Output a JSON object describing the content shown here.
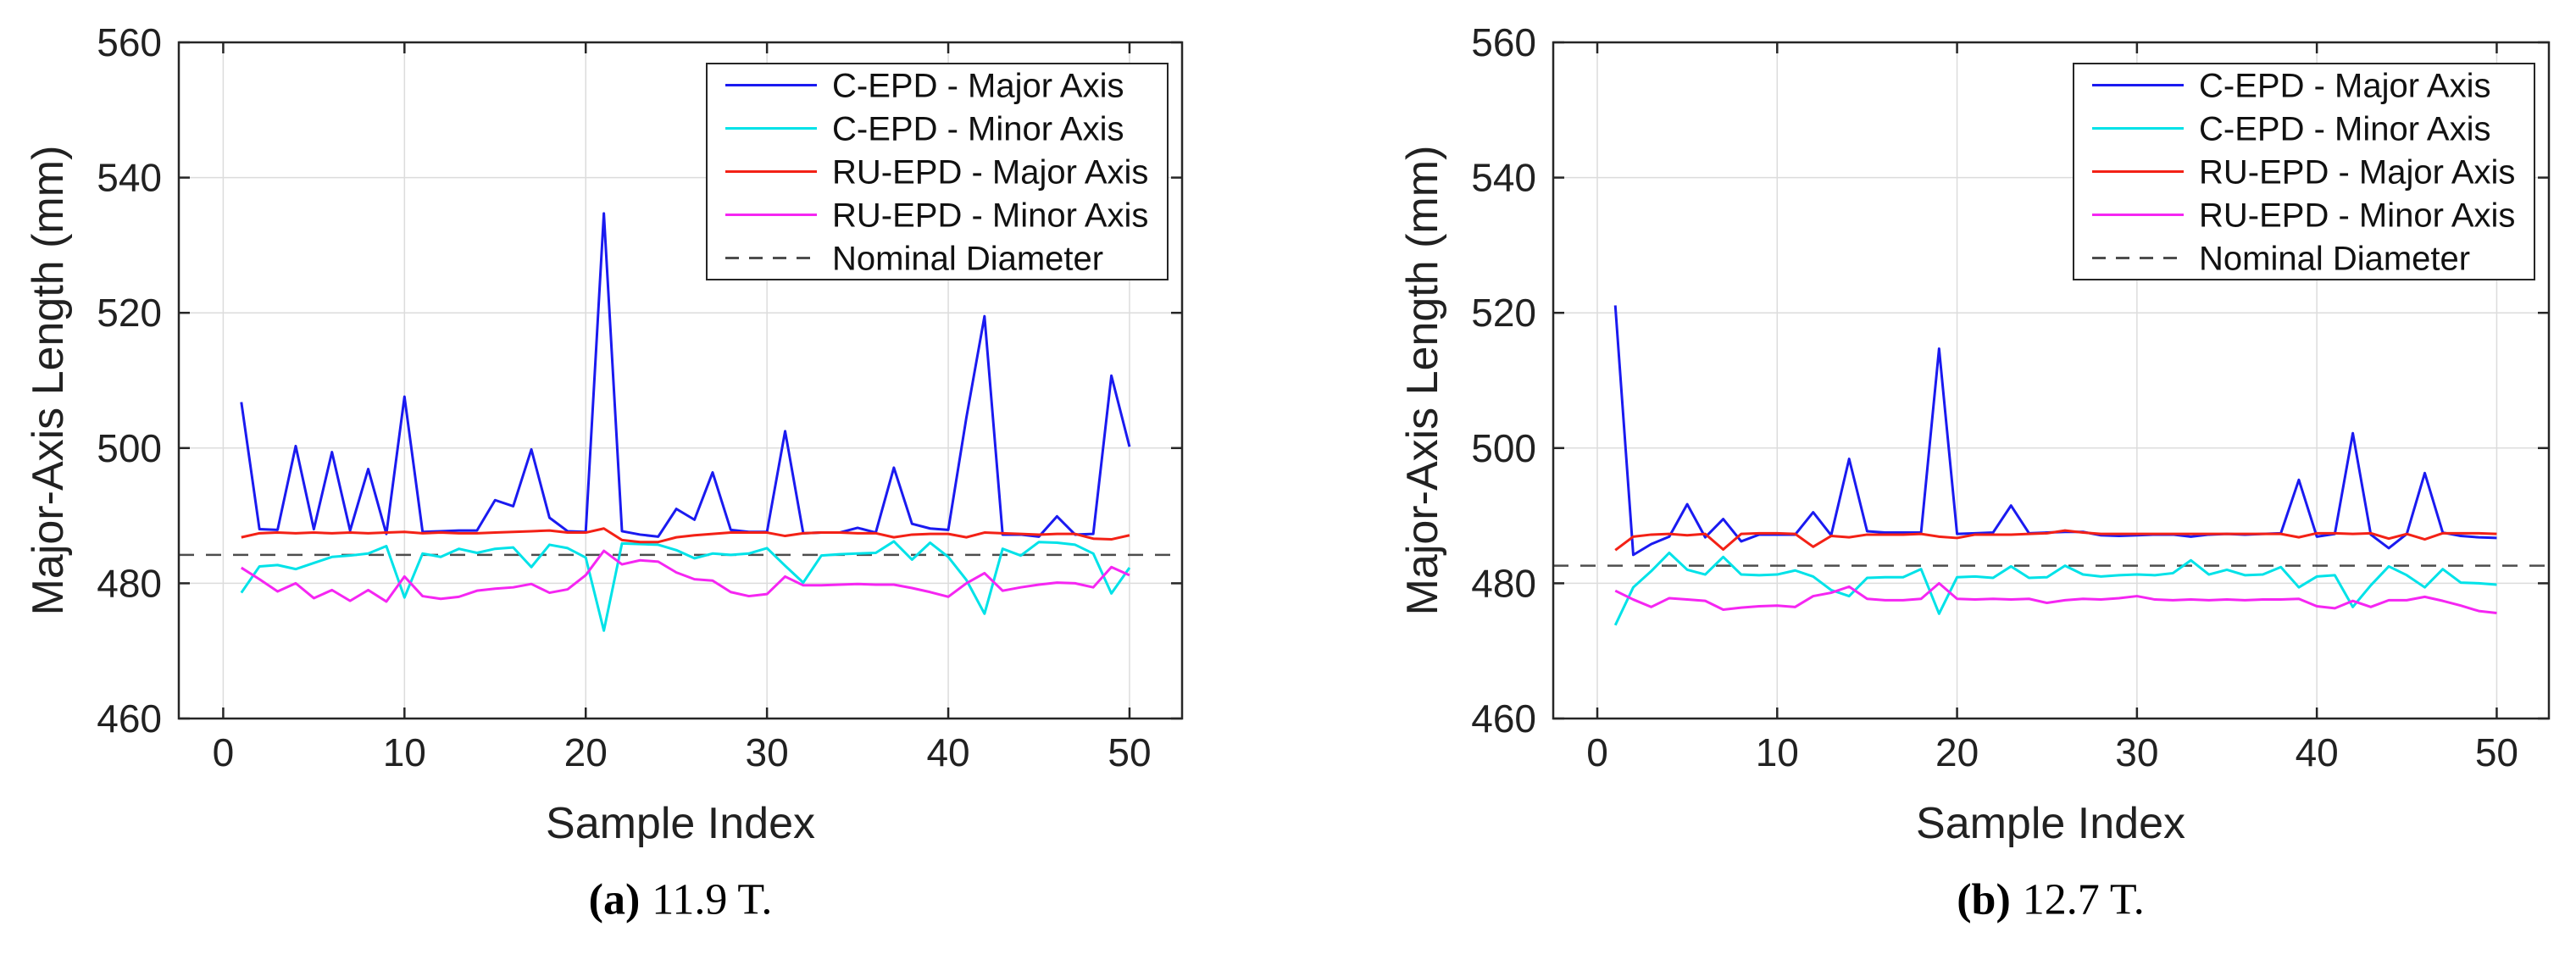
{
  "figure": {
    "background": "#ffffff",
    "text_color": "#212121",
    "grid_color": "#dcdcdc",
    "frame_color": "#262626",
    "panels": [
      {
        "id": "a",
        "ylabel": "Major-Axis Length (mm)",
        "xlabel": "Sample Index",
        "caption_marker": "(a)",
        "caption_text": "11.9 T."
      },
      {
        "id": "b",
        "ylabel": "Major-Axis Length (mm)",
        "xlabel": "Sample Index",
        "caption_marker": "(b)",
        "caption_text": "12.7 T."
      }
    ]
  },
  "chart_data": [
    {
      "type": "line",
      "title": "",
      "xlabel": "Sample Index",
      "ylabel": "Major-Axis Length (mm)",
      "xlim": [
        -2.45,
        52.9
      ],
      "ylim": [
        460,
        560
      ],
      "xticks": [
        0,
        10,
        20,
        30,
        40,
        50
      ],
      "yticks": [
        460,
        480,
        500,
        520,
        540,
        560
      ],
      "grid": true,
      "legend_position": "upper right",
      "x": [
        1,
        2,
        3,
        4,
        5,
        6,
        7,
        8,
        9,
        10,
        11,
        12,
        13,
        14,
        15,
        16,
        17,
        18,
        19,
        20,
        21,
        22,
        23,
        24,
        25,
        26,
        27,
        28,
        29,
        30,
        31,
        32,
        33,
        34,
        35,
        36,
        37,
        38,
        39,
        40,
        41,
        42,
        43,
        44,
        45,
        46,
        47,
        48,
        49,
        50
      ],
      "series": [
        {
          "name": "C-EPD - Major Axis",
          "color": "#1a1af0",
          "values": [
            506.8,
            488.0,
            487.9,
            500.3,
            488.0,
            499.4,
            487.8,
            496.9,
            487.3,
            507.6,
            487.6,
            487.7,
            487.8,
            487.8,
            492.3,
            491.4,
            499.8,
            489.7,
            487.7,
            487.6,
            534.7,
            487.7,
            487.2,
            486.9,
            491.0,
            489.4,
            496.4,
            487.9,
            487.6,
            487.6,
            502.5,
            487.4,
            487.5,
            487.5,
            488.2,
            487.5,
            497.1,
            488.8,
            488.1,
            487.9,
            504.5,
            519.5,
            487.2,
            487.2,
            486.9,
            489.9,
            487.2,
            487.3,
            510.7,
            500.2
          ]
        },
        {
          "name": "C-EPD - Minor Axis",
          "color": "#00e2e8",
          "values": [
            478.6,
            482.5,
            482.7,
            482.1,
            483.0,
            483.9,
            484.1,
            484.4,
            485.5,
            477.9,
            484.4,
            483.9,
            485.1,
            484.5,
            485.1,
            485.3,
            482.4,
            485.7,
            485.2,
            483.8,
            473.0,
            485.9,
            485.8,
            485.7,
            484.9,
            483.7,
            484.4,
            484.2,
            484.4,
            485.2,
            482.6,
            480.1,
            484.1,
            484.3,
            484.4,
            484.5,
            486.2,
            483.5,
            486.0,
            483.9,
            480.5,
            475.5,
            485.1,
            484.1,
            486.1,
            486.0,
            485.7,
            484.4,
            478.5,
            482.3
          ]
        },
        {
          "name": "RU-EPD - Major Axis",
          "color": "#f32116",
          "values": [
            486.8,
            487.4,
            487.5,
            487.4,
            487.5,
            487.4,
            487.5,
            487.4,
            487.5,
            487.6,
            487.4,
            487.5,
            487.4,
            487.4,
            487.5,
            487.6,
            487.7,
            487.8,
            487.5,
            487.5,
            488.1,
            486.4,
            486.1,
            486.1,
            486.8,
            487.1,
            487.3,
            487.5,
            487.5,
            487.5,
            487.0,
            487.4,
            487.5,
            487.5,
            487.4,
            487.4,
            486.8,
            487.2,
            487.3,
            487.3,
            486.8,
            487.5,
            487.4,
            487.3,
            487.2,
            487.3,
            487.3,
            486.6,
            486.5,
            487.1
          ]
        },
        {
          "name": "RU-EPD - Minor Axis",
          "color": "#f526f2",
          "values": [
            482.3,
            480.6,
            478.8,
            480.0,
            477.8,
            479.0,
            477.4,
            479.0,
            477.3,
            481.0,
            478.1,
            477.7,
            478.0,
            478.9,
            479.2,
            479.4,
            479.9,
            478.6,
            479.1,
            481.2,
            484.8,
            482.8,
            483.4,
            483.2,
            481.6,
            480.6,
            480.4,
            478.7,
            478.1,
            478.4,
            481.0,
            479.7,
            479.7,
            479.8,
            479.9,
            479.8,
            479.8,
            479.3,
            478.7,
            478.0,
            480.0,
            481.5,
            478.9,
            479.4,
            479.8,
            480.1,
            480.0,
            479.4,
            482.4,
            481.2
          ]
        }
      ],
      "nominal_diameter": {
        "name": "Nominal Diameter",
        "value": 484.2,
        "color": "#4d4d4d",
        "style": "dashed"
      }
    },
    {
      "type": "line",
      "title": "",
      "xlabel": "Sample Index",
      "ylabel": "Major-Axis Length (mm)",
      "xlim": [
        -2.45,
        52.9
      ],
      "ylim": [
        460,
        560
      ],
      "xticks": [
        0,
        10,
        20,
        30,
        40,
        50
      ],
      "yticks": [
        460,
        480,
        500,
        520,
        540,
        560
      ],
      "grid": true,
      "legend_position": "upper right",
      "x": [
        1,
        2,
        3,
        4,
        5,
        6,
        7,
        8,
        9,
        10,
        11,
        12,
        13,
        14,
        15,
        16,
        17,
        18,
        19,
        20,
        21,
        22,
        23,
        24,
        25,
        26,
        27,
        28,
        29,
        30,
        31,
        32,
        33,
        34,
        35,
        36,
        37,
        38,
        39,
        40,
        41,
        42,
        43,
        44,
        45,
        46,
        47,
        48,
        49,
        50
      ],
      "series": [
        {
          "name": "C-EPD - Major Axis",
          "color": "#1a1af0",
          "values": [
            521.1,
            484.2,
            485.8,
            486.9,
            491.7,
            486.8,
            489.5,
            486.2,
            487.2,
            487.2,
            487.2,
            490.5,
            487.1,
            498.4,
            487.7,
            487.5,
            487.5,
            487.5,
            514.7,
            487.3,
            487.4,
            487.5,
            491.5,
            487.4,
            487.5,
            487.6,
            487.6,
            487.1,
            487.0,
            487.1,
            487.2,
            487.2,
            486.9,
            487.2,
            487.3,
            487.2,
            487.3,
            487.4,
            495.3,
            486.9,
            487.3,
            502.2,
            487.2,
            485.2,
            487.3,
            496.3,
            487.5,
            487.0,
            486.8,
            486.7
          ]
        },
        {
          "name": "C-EPD - Minor Axis",
          "color": "#00e2e8",
          "values": [
            473.8,
            479.4,
            481.8,
            484.5,
            482.0,
            481.3,
            483.9,
            481.3,
            481.2,
            481.3,
            481.9,
            481.0,
            479.0,
            478.1,
            480.8,
            480.9,
            480.9,
            482.1,
            475.5,
            480.9,
            481.0,
            480.8,
            482.5,
            480.8,
            480.9,
            482.6,
            481.3,
            481.0,
            481.2,
            481.3,
            481.2,
            481.5,
            483.4,
            481.3,
            482.0,
            481.2,
            481.3,
            482.4,
            479.4,
            481.0,
            481.2,
            476.5,
            479.7,
            482.5,
            481.2,
            479.4,
            482.1,
            480.1,
            480.0,
            479.8
          ]
        },
        {
          "name": "RU-EPD - Major Axis",
          "color": "#f32116",
          "values": [
            484.9,
            486.9,
            487.2,
            487.3,
            487.1,
            487.3,
            485.0,
            487.3,
            487.4,
            487.4,
            487.3,
            485.4,
            487.0,
            486.8,
            487.2,
            487.2,
            487.2,
            487.3,
            486.9,
            486.7,
            487.2,
            487.2,
            487.2,
            487.3,
            487.4,
            487.8,
            487.5,
            487.3,
            487.3,
            487.3,
            487.3,
            487.3,
            487.3,
            487.3,
            487.3,
            487.3,
            487.3,
            487.3,
            486.8,
            487.4,
            487.4,
            487.3,
            487.4,
            486.6,
            487.3,
            486.5,
            487.4,
            487.4,
            487.4,
            487.3
          ]
        },
        {
          "name": "RU-EPD - Minor Axis",
          "color": "#f526f2",
          "values": [
            478.9,
            477.6,
            476.5,
            477.8,
            477.6,
            477.4,
            476.1,
            476.4,
            476.6,
            476.7,
            476.5,
            478.1,
            478.6,
            479.5,
            477.7,
            477.5,
            477.5,
            477.7,
            480.0,
            477.7,
            477.6,
            477.7,
            477.6,
            477.7,
            477.1,
            477.5,
            477.7,
            477.6,
            477.8,
            478.1,
            477.6,
            477.5,
            477.6,
            477.5,
            477.6,
            477.5,
            477.6,
            477.6,
            477.7,
            476.6,
            476.3,
            477.4,
            476.5,
            477.5,
            477.5,
            478.0,
            477.4,
            476.7,
            475.9,
            475.6
          ]
        }
      ],
      "nominal_diameter": {
        "name": "Nominal Diameter",
        "value": 482.6,
        "color": "#4d4d4d",
        "style": "dashed"
      }
    }
  ]
}
